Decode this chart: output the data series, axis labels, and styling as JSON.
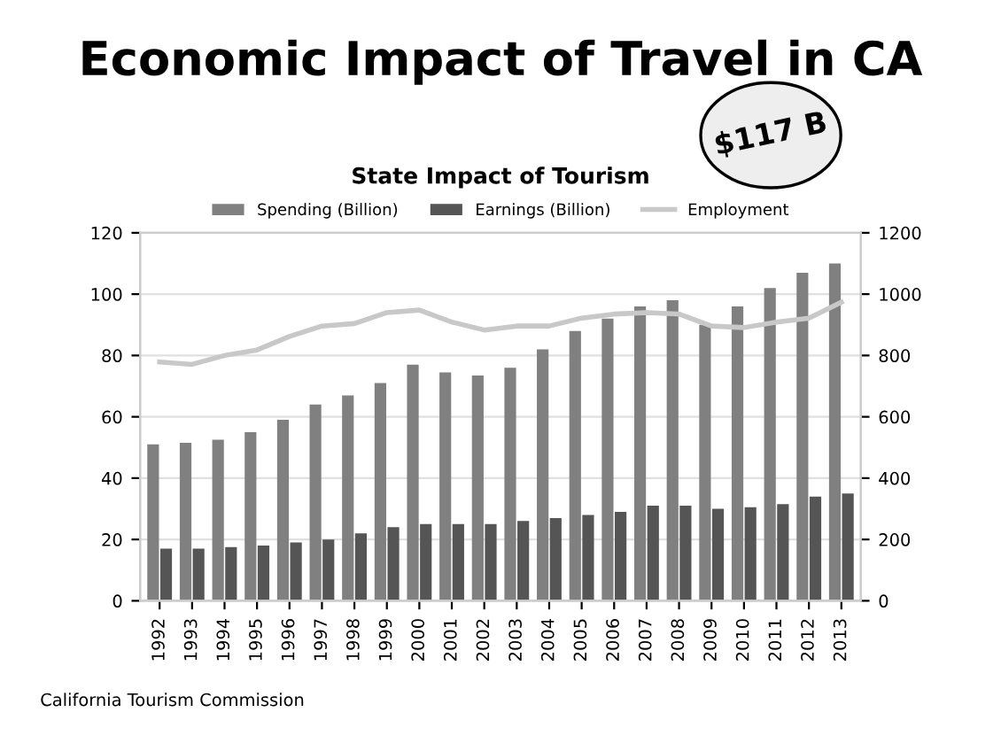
{
  "chart_data": {
    "type": "bar",
    "title": "Economic Impact of Travel in CA",
    "subtitle": "State Impact of Tourism",
    "categories": [
      "1992",
      "1993",
      "1994",
      "1995",
      "1996",
      "1997",
      "1998",
      "1999",
      "2000",
      "2001",
      "2002",
      "2003",
      "2004",
      "2005",
      "2006",
      "2007",
      "2008",
      "2009",
      "2010",
      "2011",
      "2012",
      "2013"
    ],
    "series": [
      {
        "name": "Spending (Billion)",
        "color": "#808080",
        "values": [
          51,
          51.5,
          52.5,
          55,
          59,
          64,
          67,
          71,
          77,
          74.5,
          73.5,
          76,
          82,
          88,
          92,
          96,
          98,
          90,
          96,
          102,
          107,
          110
        ]
      },
      {
        "name": "Earnings (Billion)",
        "color": "#555555",
        "values": [
          17,
          17,
          17.5,
          18,
          19,
          20,
          22,
          24,
          25,
          25,
          25,
          26,
          27,
          28,
          29,
          31,
          31,
          30,
          30.5,
          31.5,
          34,
          35
        ]
      },
      {
        "name": "Employment",
        "type": "line",
        "axis": "y2",
        "color": "#c8c8c8",
        "values": [
          779,
          771,
          800,
          818,
          862,
          896,
          904,
          940,
          948,
          909,
          883,
          896,
          896,
          922,
          935,
          940,
          935,
          896,
          891,
          909,
          922,
          974
        ]
      }
    ],
    "ylim": [
      0,
      120
    ],
    "yticks": [
      0,
      20,
      40,
      60,
      80,
      100,
      120
    ],
    "y2lim": [
      0,
      1200
    ],
    "y2ticks": [
      0,
      200,
      400,
      600,
      800,
      1000,
      1200
    ],
    "grid": "y",
    "legend": "top",
    "annotations": [
      "$117 B",
      "California Tourism Commission"
    ]
  }
}
